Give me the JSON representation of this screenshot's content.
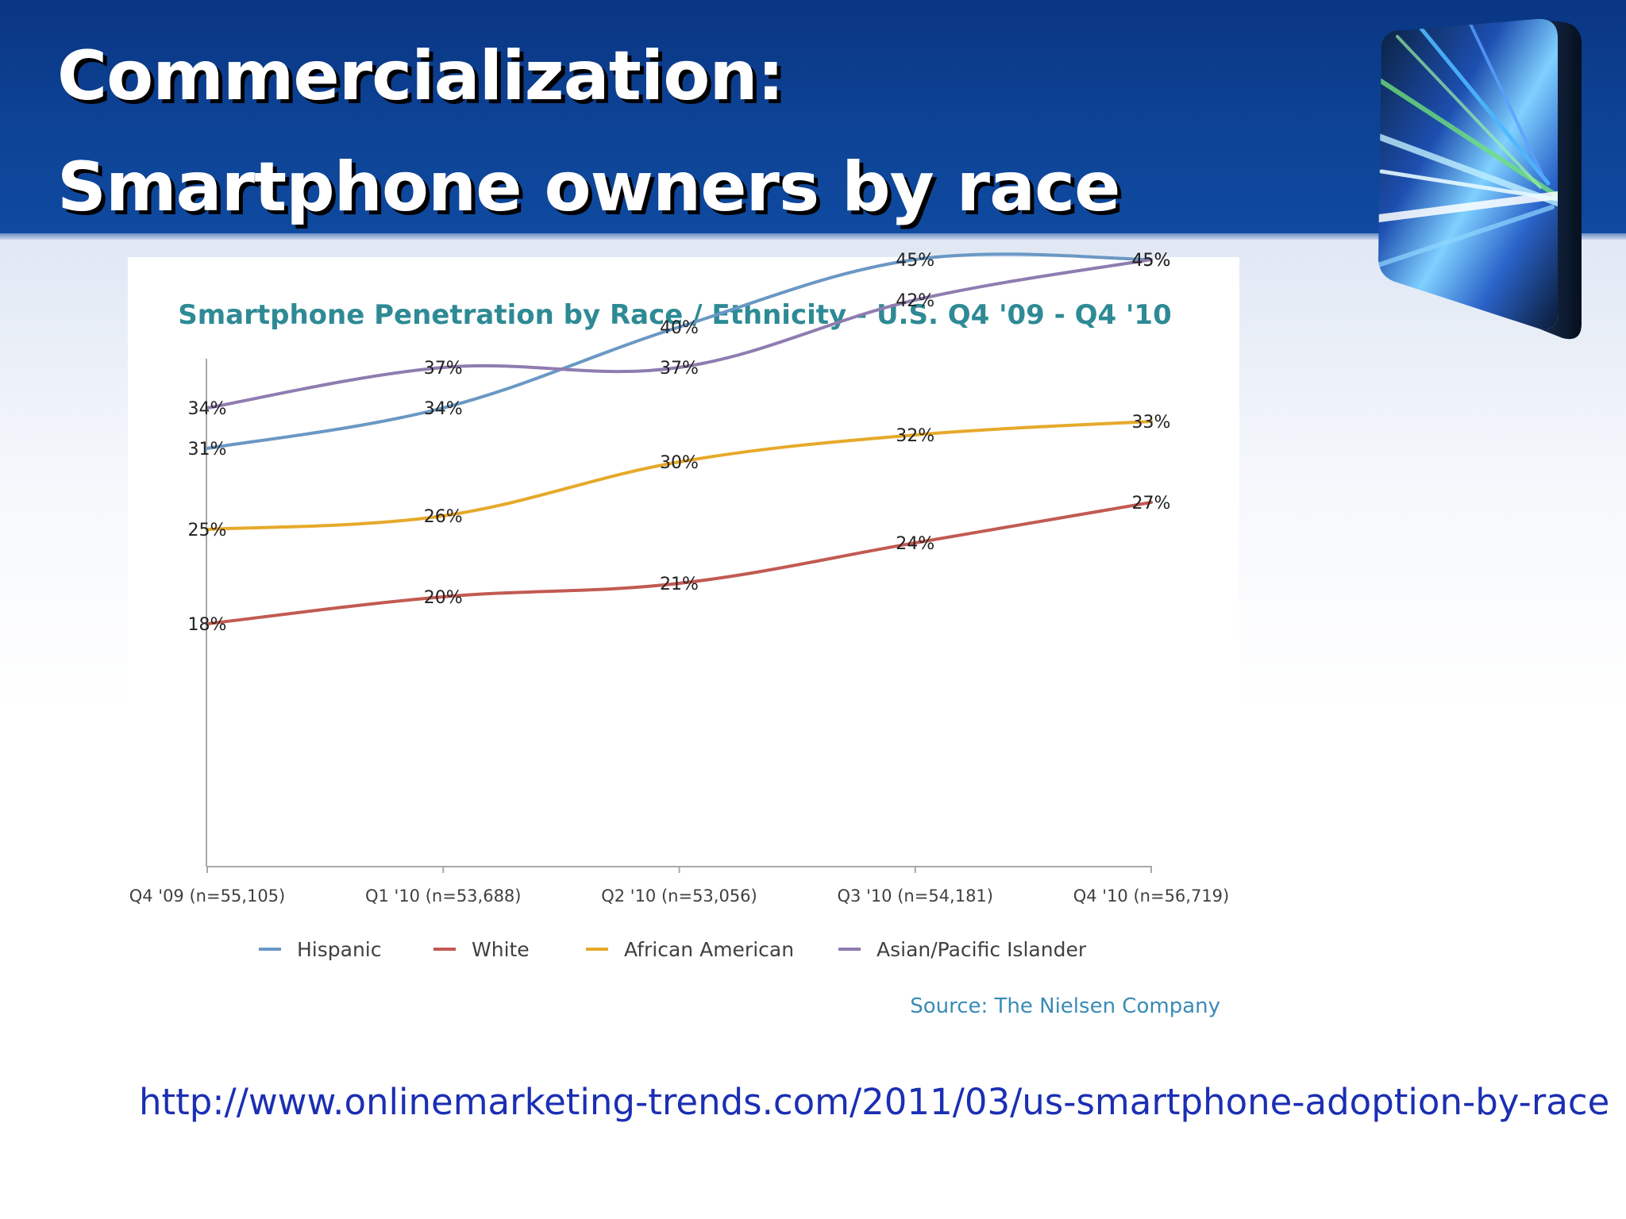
{
  "slide": {
    "title_line1": "Commercialization:",
    "title_line2": "Smartphone owners by race",
    "url": "http://www.onlinemarketing-trends.com/2011/03/us-smartphone-adoption-by-race"
  },
  "colors": {
    "header": "#0d4396",
    "title_text": "#ffffff",
    "chart_title": "#2e8a95",
    "source_text": "#3a8bb5",
    "url_text": "#1b2fb3"
  },
  "chart_data": {
    "type": "line",
    "title": "Smartphone Penetration by Race / Ethnicity - U.S. Q4 '09 - Q4 '10",
    "xlabel": "",
    "ylabel": "",
    "categories": [
      "Q4 '09 (n=55,105)",
      "Q1 '10 (n=53,688)",
      "Q2 '10 (n=53,056)",
      "Q3 '10 (n=54,181)",
      "Q4 '10 (n=56,719)"
    ],
    "ylim": [
      0,
      50
    ],
    "grid": false,
    "legend_position": "bottom",
    "series": [
      {
        "name": "Hispanic",
        "color": "#6a98c4",
        "values": [
          31,
          34,
          40,
          45,
          45
        ]
      },
      {
        "name": "White",
        "color": "#c25a52",
        "values": [
          18,
          20,
          21,
          24,
          27
        ]
      },
      {
        "name": "African American",
        "color": "#e6a92a",
        "values": [
          25,
          26,
          30,
          32,
          33
        ]
      },
      {
        "name": "Asian/Pacific Islander",
        "color": "#8f7cb0",
        "values": [
          34,
          37,
          37,
          42,
          45
        ]
      }
    ],
    "source": "Source: The Nielsen Company"
  }
}
